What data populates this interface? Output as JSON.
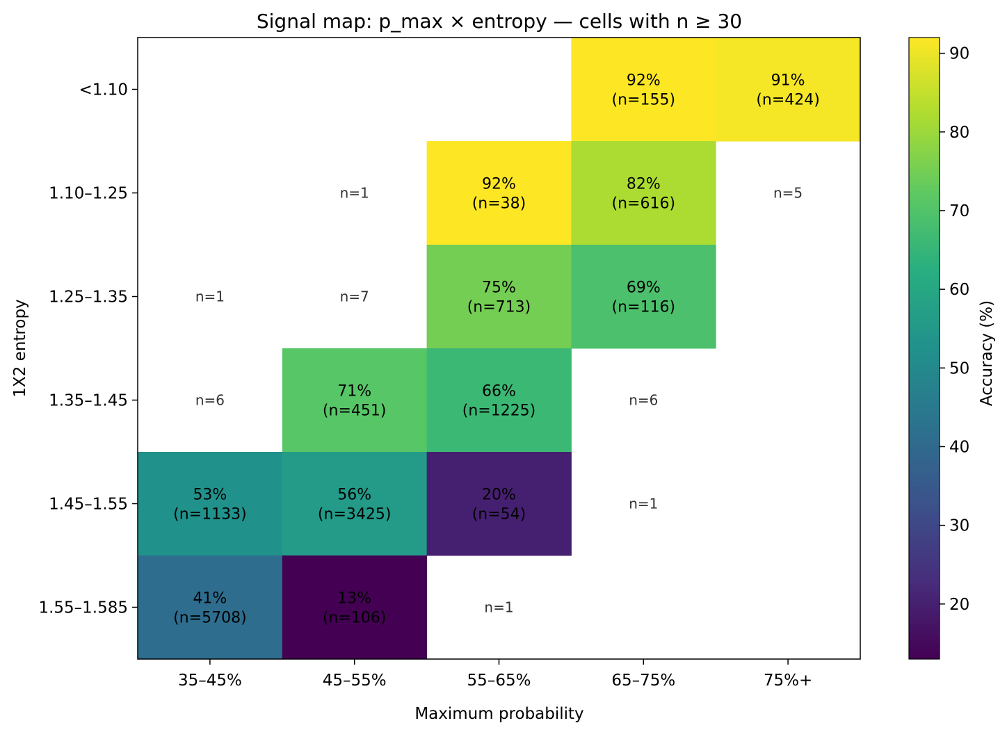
{
  "chart_data": {
    "type": "heatmap",
    "title": "Signal map: p_max × entropy — cells with n ≥ 30",
    "xlabel": "Maximum probability",
    "ylabel": "1X2 entropy",
    "x_categories": [
      "35–45%",
      "45–55%",
      "55–65%",
      "65–75%",
      "75%+"
    ],
    "y_categories": [
      "<1.10",
      "1.10–1.25",
      "1.25–1.35",
      "1.35–1.45",
      "1.45–1.55",
      "1.55–1.585"
    ],
    "cells": [
      {
        "x": "65–75%",
        "y": "<1.10",
        "accuracy": 92,
        "label": "92%",
        "n": "(n=155)"
      },
      {
        "x": "75%+",
        "y": "<1.10",
        "accuracy": 91,
        "label": "91%",
        "n": "(n=424)"
      },
      {
        "x": "45–55%",
        "y": "1.10–1.25",
        "accuracy": null,
        "label": "",
        "n": "n=1"
      },
      {
        "x": "55–65%",
        "y": "1.10–1.25",
        "accuracy": 92,
        "label": "92%",
        "n": "(n=38)"
      },
      {
        "x": "65–75%",
        "y": "1.10–1.25",
        "accuracy": 82,
        "label": "82%",
        "n": "(n=616)"
      },
      {
        "x": "75%+",
        "y": "1.10–1.25",
        "accuracy": null,
        "label": "",
        "n": "n=5"
      },
      {
        "x": "35–45%",
        "y": "1.25–1.35",
        "accuracy": null,
        "label": "",
        "n": "n=1"
      },
      {
        "x": "45–55%",
        "y": "1.25–1.35",
        "accuracy": null,
        "label": "",
        "n": "n=7"
      },
      {
        "x": "55–65%",
        "y": "1.25–1.35",
        "accuracy": 75,
        "label": "75%",
        "n": "(n=713)"
      },
      {
        "x": "65–75%",
        "y": "1.25–1.35",
        "accuracy": 69,
        "label": "69%",
        "n": "(n=116)"
      },
      {
        "x": "35–45%",
        "y": "1.35–1.45",
        "accuracy": null,
        "label": "",
        "n": "n=6"
      },
      {
        "x": "45–55%",
        "y": "1.35–1.45",
        "accuracy": 71,
        "label": "71%",
        "n": "(n=451)"
      },
      {
        "x": "55–65%",
        "y": "1.35–1.45",
        "accuracy": 66,
        "label": "66%",
        "n": "(n=1225)"
      },
      {
        "x": "65–75%",
        "y": "1.35–1.45",
        "accuracy": null,
        "label": "",
        "n": "n=6"
      },
      {
        "x": "35–45%",
        "y": "1.45–1.55",
        "accuracy": 53,
        "label": "53%",
        "n": "(n=1133)"
      },
      {
        "x": "45–55%",
        "y": "1.45–1.55",
        "accuracy": 56,
        "label": "56%",
        "n": "(n=3425)"
      },
      {
        "x": "55–65%",
        "y": "1.45–1.55",
        "accuracy": 20,
        "label": "20%",
        "n": "(n=54)"
      },
      {
        "x": "65–75%",
        "y": "1.45–1.55",
        "accuracy": null,
        "label": "",
        "n": "n=1"
      },
      {
        "x": "35–45%",
        "y": "1.55–1.585",
        "accuracy": 41,
        "label": "41%",
        "n": "(n=5708)"
      },
      {
        "x": "45–55%",
        "y": "1.55–1.585",
        "accuracy": 13,
        "label": "13%",
        "n": "(n=106)"
      },
      {
        "x": "55–65%",
        "y": "1.55–1.585",
        "accuracy": null,
        "label": "",
        "n": "n=1"
      }
    ],
    "colorbar": {
      "label": "Accuracy (%)",
      "colormap": "viridis",
      "range": [
        13,
        92
      ],
      "ticks": [
        "20",
        "30",
        "40",
        "50",
        "60",
        "70",
        "80",
        "90"
      ]
    },
    "grid": false
  }
}
